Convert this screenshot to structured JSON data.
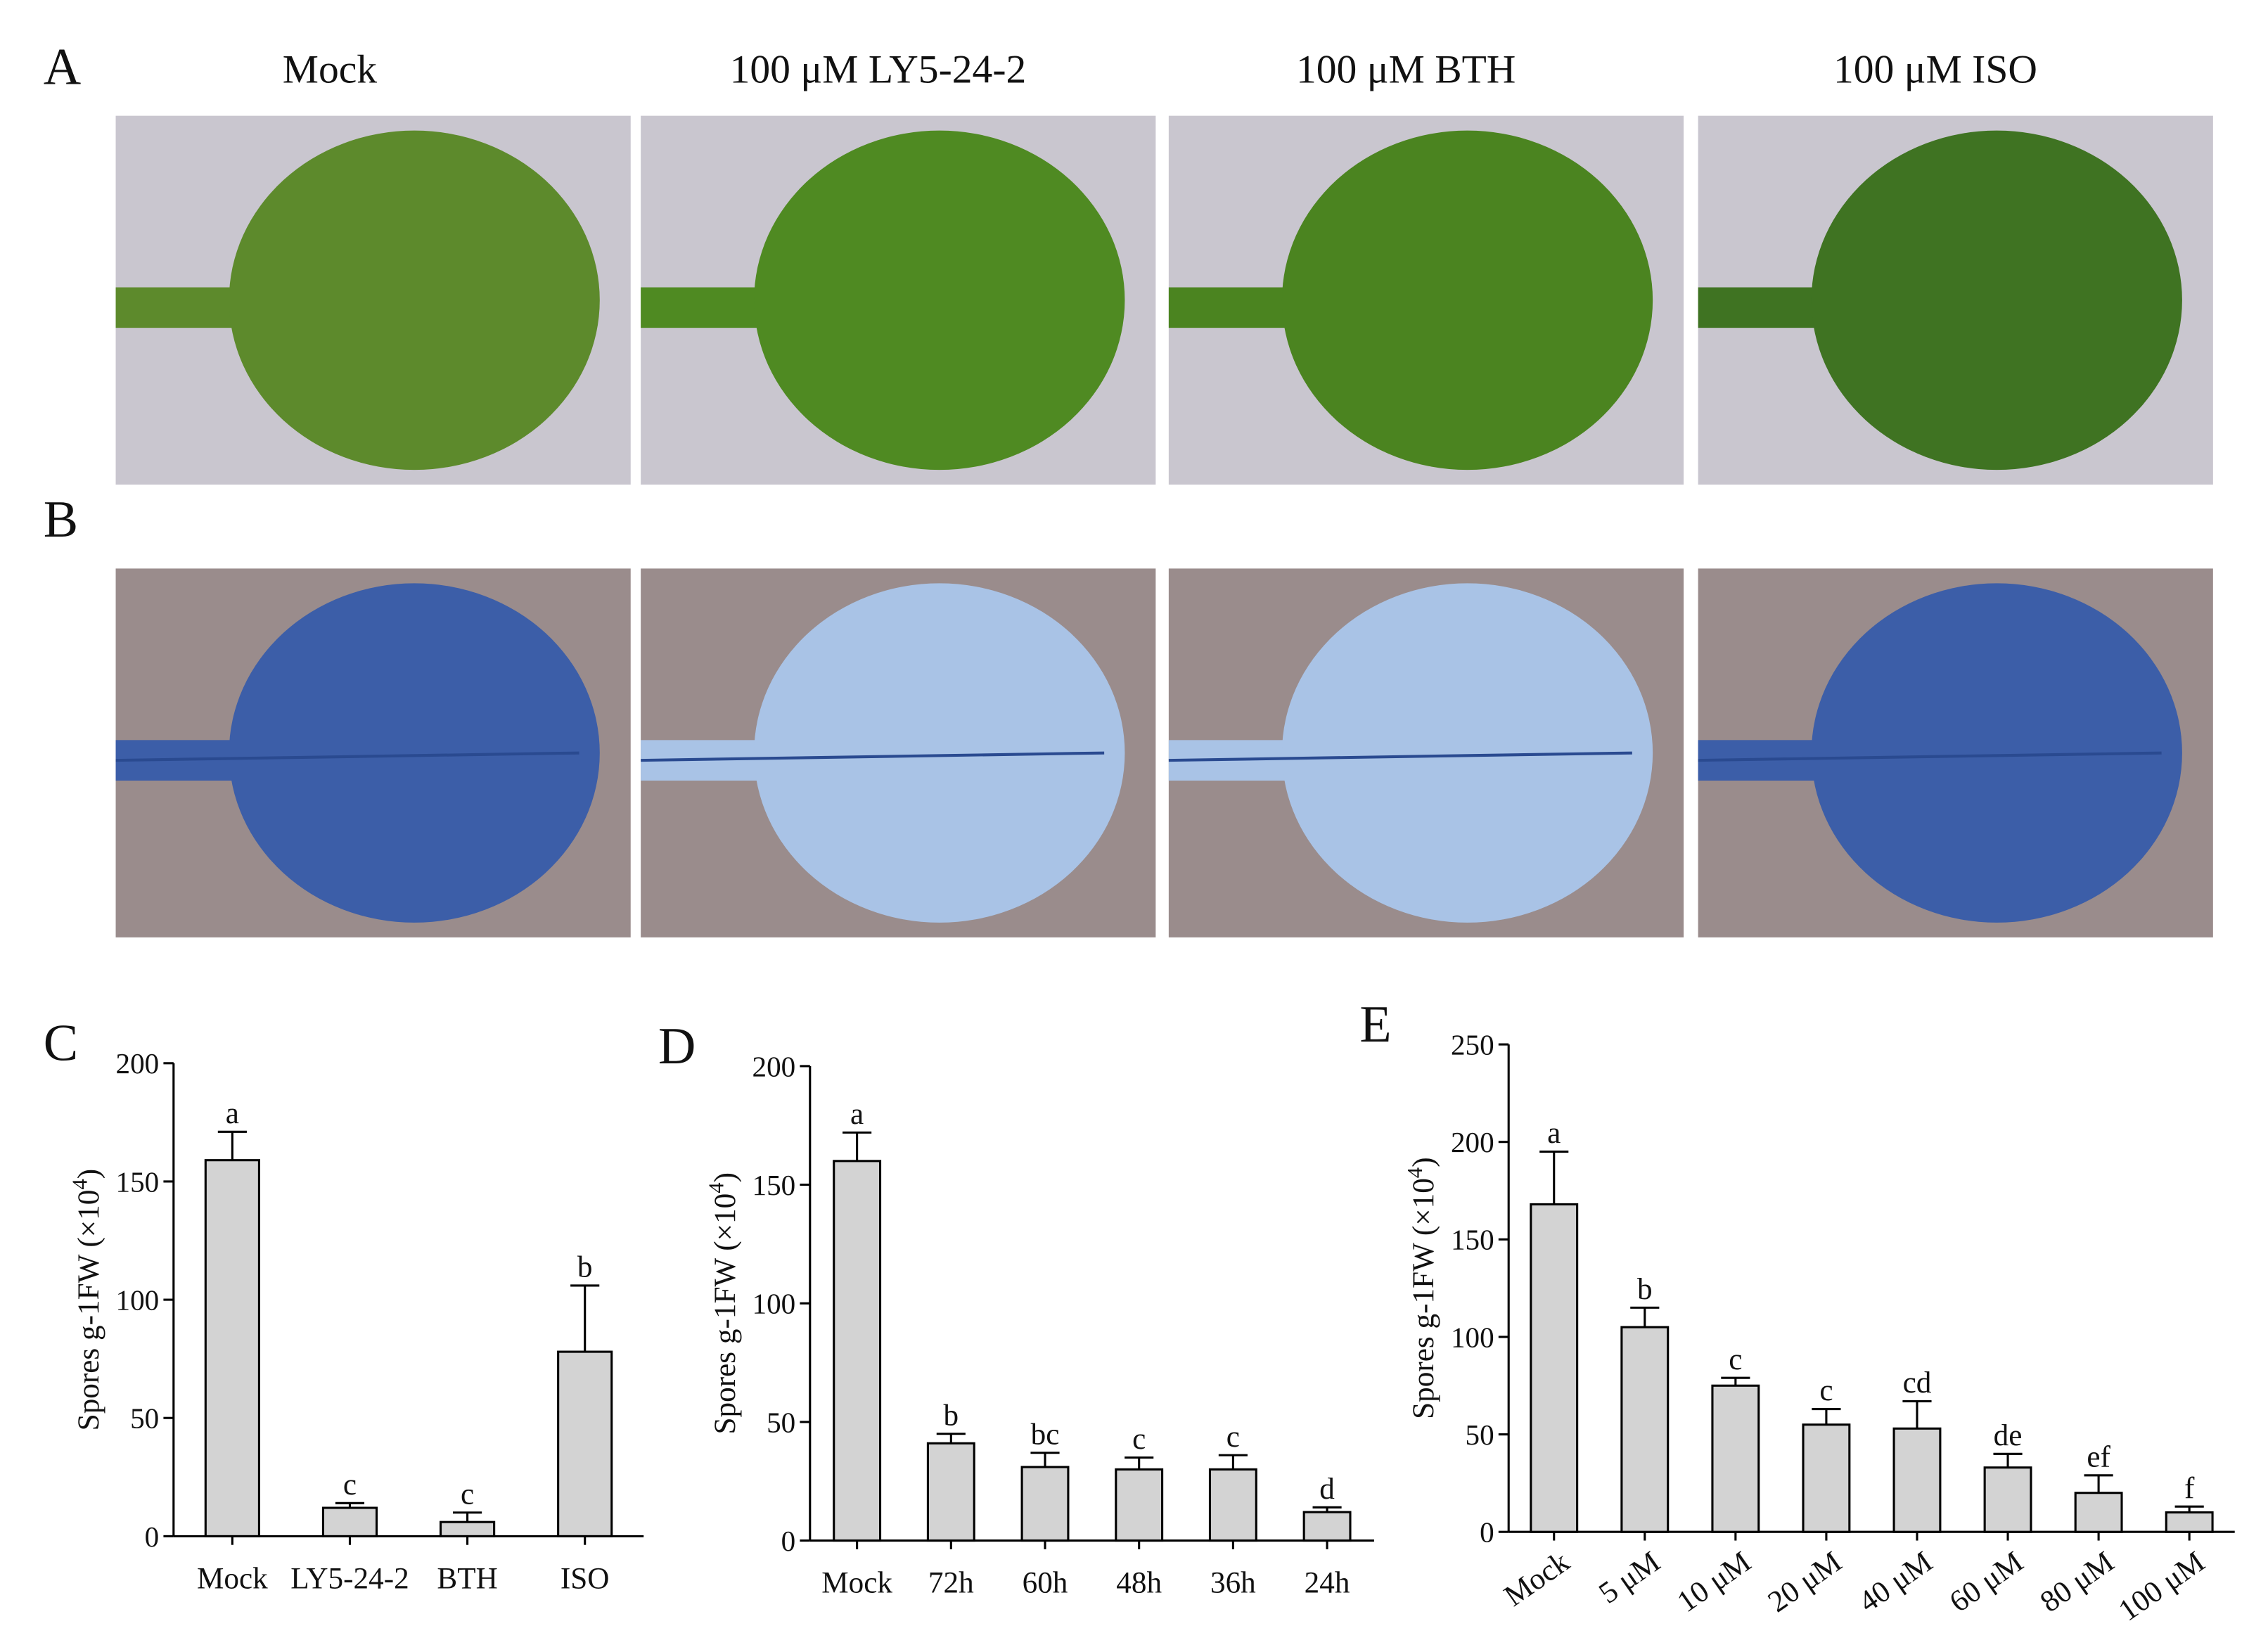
{
  "panels": [
    "A",
    "B"
  ],
  "columns": [
    "Mock",
    "100 μM LY5-24-2",
    "100 μM BTH",
    "100 μM ISO"
  ],
  "chart_data": [
    {
      "type": "bar",
      "panel": "C",
      "y_label": {
        "main": "Spores g-1FW (×10",
        "sup": "4",
        "end": ")"
      },
      "categories": [
        "Mock",
        "LY5-24-2",
        "BTH",
        "ISO"
      ],
      "values": [
        159,
        12,
        6,
        78
      ],
      "errors": [
        12,
        2,
        4,
        28
      ],
      "labels": [
        "a",
        "c",
        "c",
        "b"
      ],
      "color": "#d3d3d3",
      "ylim": [
        0,
        200
      ],
      "yticks": [
        0,
        50,
        100,
        150,
        200
      ]
    },
    {
      "type": "bar",
      "panel": "D",
      "y_label": {
        "main": "Spores g-1FW (×10",
        "sup": "4",
        "end": ")"
      },
      "categories": [
        "Mock",
        "72h",
        "60h",
        "48h",
        "36h",
        "24h"
      ],
      "values": [
        160,
        41,
        31,
        30,
        30,
        12
      ],
      "errors": [
        12,
        4,
        6,
        5,
        6,
        2
      ],
      "labels": [
        "a",
        "b",
        "bc",
        "c",
        "c",
        "d"
      ],
      "color": "#d3d3d3",
      "ylim": [
        0,
        200
      ],
      "yticks": [
        0,
        50,
        100,
        150,
        200
      ]
    },
    {
      "type": "bar",
      "panel": "E",
      "y_label": {
        "main": "Spores g-1FW (×10",
        "sup": "4",
        "end": ")"
      },
      "categories": [
        "Mock",
        "5 μM",
        "10 μM",
        "20 μM",
        "40 μM",
        "60 μM",
        "80 μM",
        "100 μM"
      ],
      "values": [
        168,
        105,
        75,
        55,
        53,
        33,
        20,
        10
      ],
      "errors": [
        27,
        10,
        4,
        8,
        14,
        7,
        9,
        3
      ],
      "labels": [
        "a",
        "b",
        "c",
        "c",
        "cd",
        "de",
        "ef",
        "f"
      ],
      "color": "#d3d3d3",
      "ylim": [
        0,
        250
      ],
      "yticks": [
        0,
        50,
        100,
        150,
        200,
        250
      ]
    }
  ]
}
